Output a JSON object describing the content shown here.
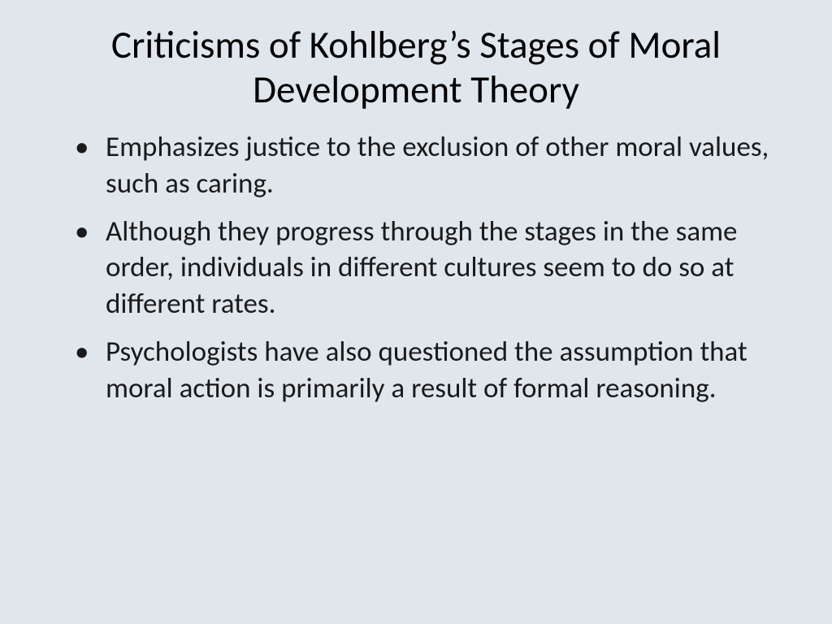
{
  "slide": {
    "background_color": "#dfe7ed",
    "text_color": "#1a1a1a",
    "title_color": "#000000",
    "font_family": "Calibri",
    "title": "Criticisms of Kohlberg’s Stages of Moral Development Theory",
    "title_fontsize": 47,
    "bullet_fontsize": 35,
    "bullets": [
      "Emphasizes justice to the exclusion of other moral values, such as caring.",
      "Although they progress through the stages in the same order, individuals in different cultures seem to do so at different rates.",
      "Psychologists have also questioned the assumption that moral action is primarily a result of formal reasoning."
    ]
  }
}
